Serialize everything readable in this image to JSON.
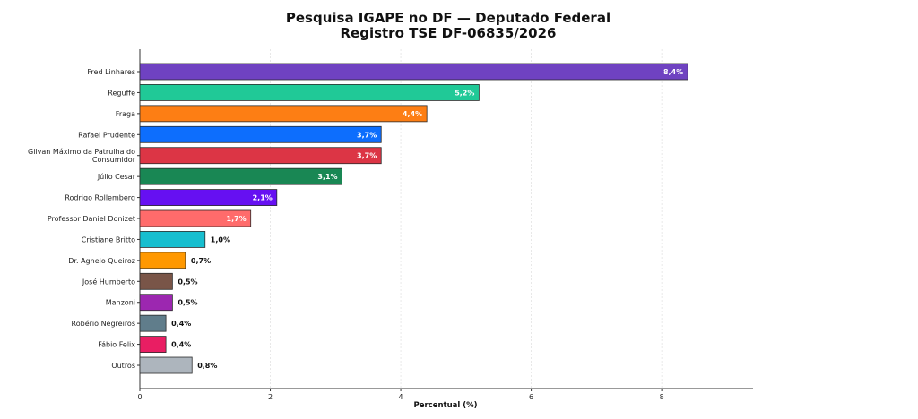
{
  "chart_data": {
    "type": "bar",
    "orientation": "horizontal",
    "title": [
      "Pesquisa IGAPE no DF — Deputado Federal",
      "Registro TSE DF-06835/2026"
    ],
    "xlabel": "Percentual (%)",
    "ylabel": "",
    "xlim": [
      0,
      9.4
    ],
    "x_ticks": [
      0,
      2,
      4,
      6,
      8
    ],
    "grid": "x",
    "categories": [
      [
        "Fred Linhares"
      ],
      [
        "Reguffe"
      ],
      [
        "Fraga"
      ],
      [
        "Rafael Prudente"
      ],
      [
        "Gilvan Máximo da Patrulha do",
        "Consumidor"
      ],
      [
        "Júlio Cesar"
      ],
      [
        "Rodrigo Rollemberg"
      ],
      [
        "Professor Daniel Donizet"
      ],
      [
        "Cristiane Britto"
      ],
      [
        "Dr. Agnelo Queiroz"
      ],
      [
        "José Humberto"
      ],
      [
        "Manzoni"
      ],
      [
        "Robério Negreiros"
      ],
      [
        "Fábio Felix"
      ],
      [
        "Outros"
      ]
    ],
    "values": [
      8.4,
      5.2,
      4.4,
      3.7,
      3.7,
      3.1,
      2.1,
      1.7,
      1.0,
      0.7,
      0.5,
      0.5,
      0.4,
      0.4,
      0.8
    ],
    "value_labels": [
      "8,4%",
      "5,2%",
      "4,4%",
      "3,7%",
      "3,7%",
      "3,1%",
      "2,1%",
      "1,7%",
      "1,0%",
      "0,7%",
      "0,5%",
      "0,5%",
      "0,4%",
      "0,4%",
      "0,8%"
    ],
    "colors": [
      "#6f42c1",
      "#20c997",
      "#fd7e14",
      "#0d6efd",
      "#dc3545",
      "#198754",
      "#6610f2",
      "#ff6b6b",
      "#17becf",
      "#ff9800",
      "#795548",
      "#9c27b0",
      "#607d8b",
      "#e91e63",
      "#adb5bd"
    ]
  }
}
